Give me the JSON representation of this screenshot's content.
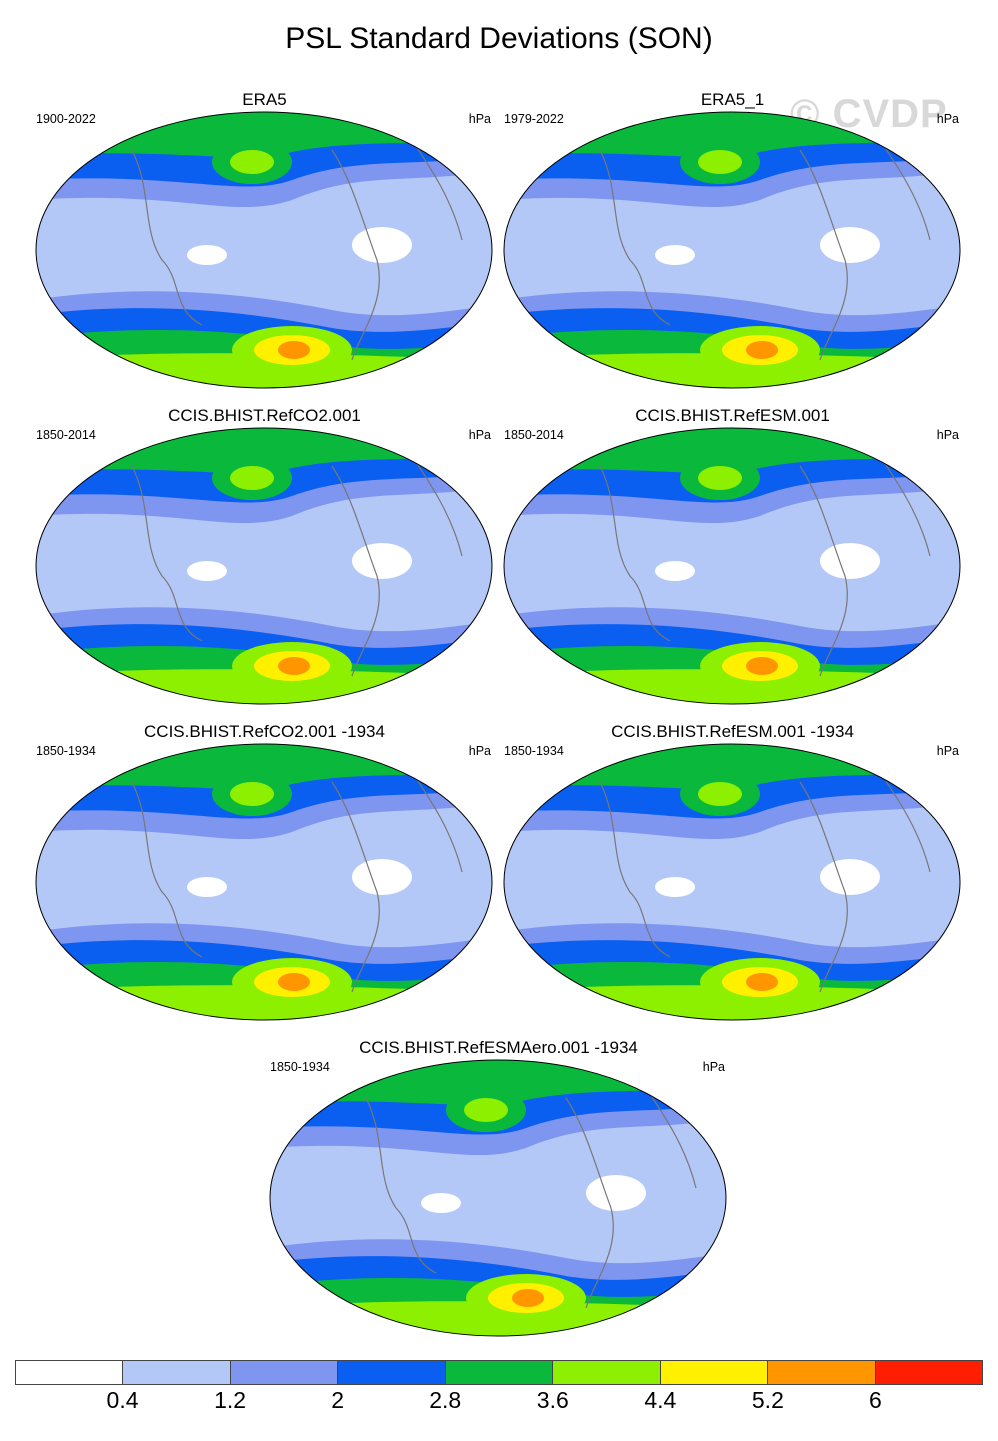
{
  "title": "PSL Standard Deviations (SON)",
  "watermark": "© CVDP",
  "panels": [
    {
      "title": "ERA5",
      "period": "1900-2022",
      "unit": "hPa"
    },
    {
      "title": "ERA5_1",
      "period": "1979-2022",
      "unit": "hPa"
    },
    {
      "title": "CCIS.BHIST.RefCO2.001",
      "period": "1850-2014",
      "unit": "hPa"
    },
    {
      "title": "CCIS.BHIST.RefESM.001",
      "period": "1850-2014",
      "unit": "hPa"
    },
    {
      "title": "CCIS.BHIST.RefCO2.001 -1934",
      "period": "1850-1934",
      "unit": "hPa"
    },
    {
      "title": "CCIS.BHIST.RefESM.001 -1934",
      "period": "1850-1934",
      "unit": "hPa"
    },
    {
      "title": "CCIS.BHIST.RefESMAero.001 -1934",
      "period": "1850-1934",
      "unit": "hPa"
    }
  ],
  "colorbar": {
    "colors": [
      "#ffffff",
      "#b4c8f8",
      "#7f96f0",
      "#0a5ff0",
      "#0ab93c",
      "#8cf000",
      "#fff000",
      "#ff9600",
      "#ff1e00"
    ],
    "labels": [
      "0.4",
      "1.2",
      "2",
      "2.8",
      "3.6",
      "4.4",
      "5.2",
      "6"
    ]
  }
}
